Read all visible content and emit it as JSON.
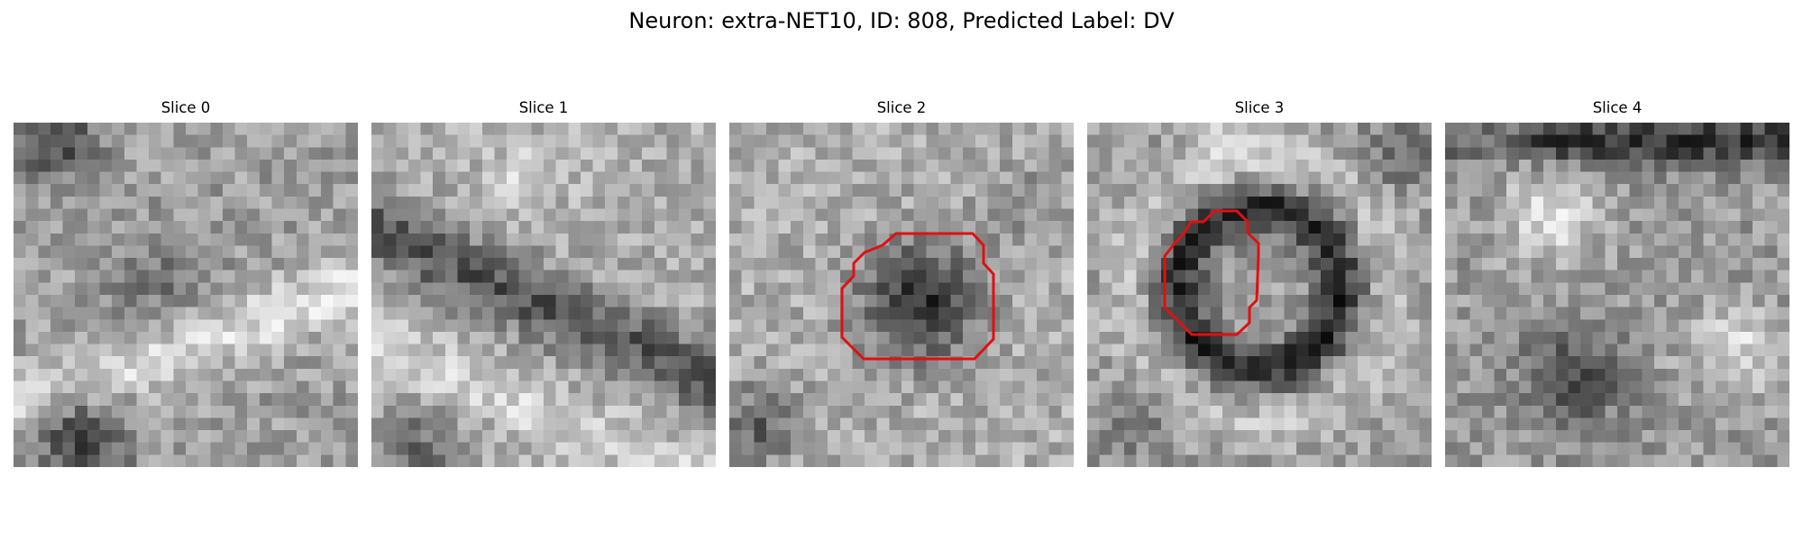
{
  "figure": {
    "title": "Neuron: extra-NET10, ID: 808, Predicted Label: DV"
  },
  "panels": [
    {
      "title": "Slice 0",
      "has_outline": false
    },
    {
      "title": "Slice 1",
      "has_outline": false
    },
    {
      "title": "Slice 2",
      "has_outline": true
    },
    {
      "title": "Slice 3",
      "has_outline": true
    },
    {
      "title": "Slice 4",
      "has_outline": false
    }
  ],
  "colors": {
    "outline": "#e01010",
    "background": "#ffffff",
    "colormap": "grayscale"
  }
}
